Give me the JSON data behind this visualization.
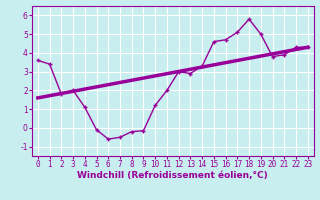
{
  "title": "",
  "xlabel": "Windchill (Refroidissement éolien,°C)",
  "ylabel": "",
  "bg_color": "#c8eef0",
  "line_color": "#990099",
  "grid_color": "#ffffff",
  "x_data": [
    0,
    1,
    2,
    3,
    4,
    5,
    6,
    7,
    8,
    9,
    10,
    11,
    12,
    13,
    14,
    15,
    16,
    17,
    18,
    19,
    20,
    21,
    22,
    23
  ],
  "y_data": [
    3.6,
    3.4,
    1.8,
    2.0,
    1.1,
    -0.1,
    -0.6,
    -0.5,
    -0.2,
    -0.15,
    1.2,
    2.0,
    3.0,
    2.9,
    3.3,
    4.6,
    4.7,
    5.1,
    5.8,
    5.0,
    3.8,
    3.9,
    4.3,
    4.3
  ],
  "trend_x": [
    0,
    23
  ],
  "trend_y": [
    1.6,
    4.3
  ],
  "ylim": [
    -1.5,
    6.5
  ],
  "xlim": [
    -0.5,
    23.5
  ],
  "yticks": [
    -1,
    0,
    1,
    2,
    3,
    4,
    5,
    6
  ],
  "xticks": [
    0,
    1,
    2,
    3,
    4,
    5,
    6,
    7,
    8,
    9,
    10,
    11,
    12,
    13,
    14,
    15,
    16,
    17,
    18,
    19,
    20,
    21,
    22,
    23
  ],
  "tick_fontsize": 5.5,
  "xlabel_fontsize": 6.5,
  "marker": "+"
}
